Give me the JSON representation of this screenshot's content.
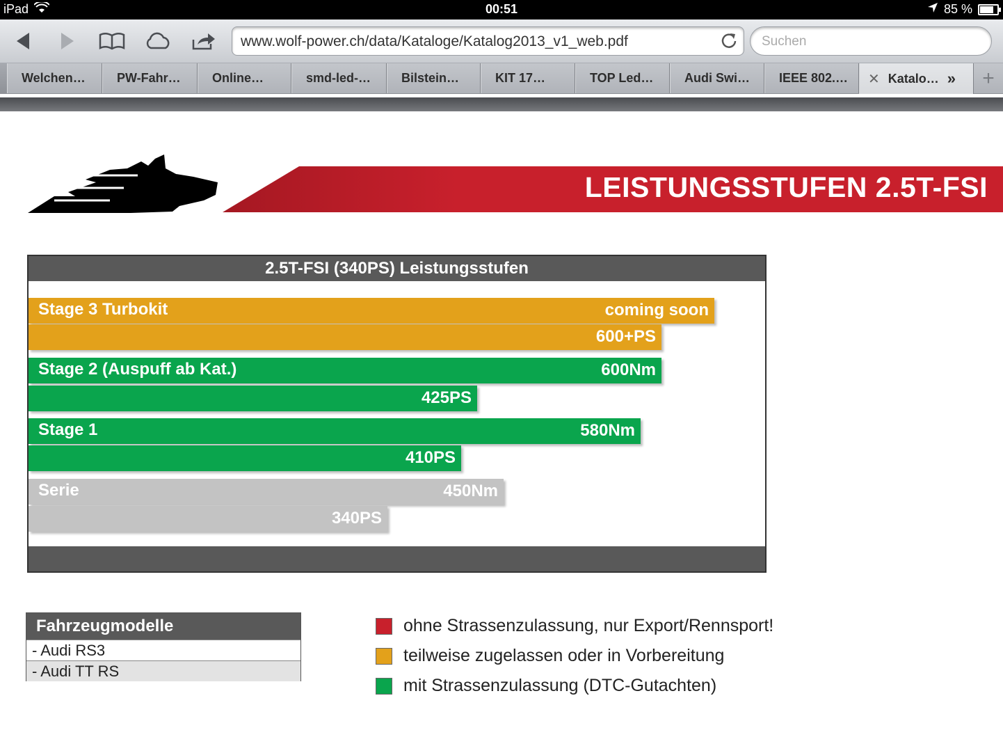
{
  "status": {
    "device": "iPad",
    "time": "00:51",
    "battery": "85 %",
    "battery_fraction": 0.85
  },
  "browser": {
    "url": "www.wolf-power.ch/data/Kataloge/Katalog2013_v1_web.pdf",
    "search_placeholder": "Suchen",
    "tabs": [
      {
        "label": "Welchen…"
      },
      {
        "label": "PW-Fahr…"
      },
      {
        "label": "Online…"
      },
      {
        "label": "smd-led-…"
      },
      {
        "label": "Bilstein…"
      },
      {
        "label": "KIT 17…"
      },
      {
        "label": "TOP Led…"
      },
      {
        "label": "Audi Swi…"
      },
      {
        "label": "IEEE 802.…"
      },
      {
        "label": "Katalo…"
      }
    ],
    "colors": {
      "toolbar": "#d6d8dc",
      "tabbar": "#9a9da3"
    }
  },
  "page": {
    "banner_title": "LEISTUNGSSTUFEN 2.5T-FSI",
    "colors": {
      "red": "#c8202c",
      "orange": "#e3a11b",
      "green": "#0aa54d",
      "grey": "#c3c3c3",
      "dark": "#595959"
    },
    "chart_title": "2.5T-FSI (340PS) Leistungsstufen",
    "chart_data": {
      "type": "bar",
      "title": "2.5T-FSI (340PS) Leistungsstufen",
      "bars": [
        {
          "stage": "Stage 3 Turbokit",
          "label": "Stage 3 Turbokit",
          "value_text": "coming soon",
          "color": "#e3a11b"
        },
        {
          "stage": "Stage 3 Turbokit",
          "label": "",
          "value_text": "600+PS",
          "ps": 600,
          "color": "#e3a11b"
        },
        {
          "stage": "Stage 2 (Auspuff ab Kat.)",
          "label": "Stage 2 (Auspuff ab Kat.)",
          "value_text": "600Nm",
          "nm": 600,
          "color": "#0aa54d"
        },
        {
          "stage": "Stage 2 (Auspuff ab Kat.)",
          "label": "",
          "value_text": "425PS",
          "ps": 425,
          "color": "#0aa54d"
        },
        {
          "stage": "Stage 1",
          "label": "Stage 1",
          "value_text": "580Nm",
          "nm": 580,
          "color": "#0aa54d"
        },
        {
          "stage": "Stage 1",
          "label": "",
          "value_text": "410PS",
          "ps": 410,
          "color": "#0aa54d"
        },
        {
          "stage": "Serie",
          "label": "Serie",
          "value_text": "450Nm",
          "nm": 450,
          "color": "#c3c3c3"
        },
        {
          "stage": "Serie",
          "label": "",
          "value_text": "340PS",
          "ps": 340,
          "color": "#c3c3c3"
        }
      ]
    },
    "models": {
      "title": "Fahrzeugmodelle",
      "items": [
        "- Audi RS3",
        "- Audi TT RS"
      ]
    },
    "legend": [
      {
        "color": "#c8202c",
        "text": "ohne Strassenzulassung, nur Export/Rennsport!"
      },
      {
        "color": "#e3a11b",
        "text": "teilweise zugelassen oder in Vorbereitung"
      },
      {
        "color": "#0aa54d",
        "text": "mit Strassenzulassung (DTC-Gutachten)"
      }
    ]
  }
}
